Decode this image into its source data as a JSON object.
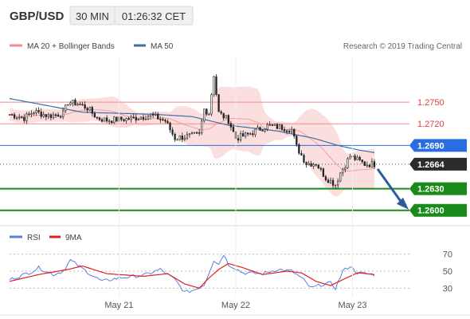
{
  "header": {
    "symbol": "GBP/USD",
    "timeframe": "30 MIN",
    "time": "01:26:32 CET"
  },
  "legend": {
    "items": [
      {
        "label": "MA 20 + Bollinger Bands",
        "color": "#f28b8b"
      },
      {
        "label": "MA 50",
        "color": "#3d6fa8"
      }
    ],
    "credit": "Research © 2019 Trading Central"
  },
  "rsi_legend": {
    "items": [
      {
        "label": "RSI",
        "color": "#5b7fe0"
      },
      {
        "label": "9MA",
        "color": "#e02020"
      }
    ]
  },
  "chart_data": [
    {
      "type": "candlestick",
      "ylim": [
        1.2582,
        1.2812
      ],
      "x_labels": [
        {
          "label": "May 21",
          "index": 45
        },
        {
          "label": "May 22",
          "index": 93
        },
        {
          "label": "May 23",
          "index": 141
        }
      ],
      "levels": [
        {
          "value": 1.275,
          "label": "1.2750",
          "style": "resistance",
          "color": "#f28b8b"
        },
        {
          "value": 1.272,
          "label": "1.2720",
          "style": "resistance",
          "color": "#f28b8b"
        },
        {
          "value": 1.269,
          "label": "1.2690",
          "style": "pivot",
          "color": "#2a6de0"
        },
        {
          "value": 1.2664,
          "label": "1.2664",
          "style": "last",
          "color": "#333333"
        },
        {
          "value": 1.263,
          "label": "1.2630",
          "style": "support",
          "color": "#1a8a1a"
        },
        {
          "value": 1.26,
          "label": "1.2600",
          "style": "support",
          "color": "#1a8a1a"
        }
      ],
      "waypoints": [
        [
          0,
          1.2733
        ],
        [
          6,
          1.2728
        ],
        [
          10,
          1.2737
        ],
        [
          16,
          1.2731
        ],
        [
          22,
          1.2734
        ],
        [
          24,
          1.275
        ],
        [
          28,
          1.2748
        ],
        [
          32,
          1.2742
        ],
        [
          36,
          1.2728
        ],
        [
          40,
          1.2725
        ],
        [
          50,
          1.2727
        ],
        [
          58,
          1.2732
        ],
        [
          64,
          1.2724
        ],
        [
          68,
          1.27
        ],
        [
          74,
          1.2703
        ],
        [
          78,
          1.2705
        ],
        [
          80,
          1.274
        ],
        [
          82,
          1.2735
        ],
        [
          84,
          1.2788
        ],
        [
          86,
          1.2735
        ],
        [
          90,
          1.2725
        ],
        [
          93,
          1.27
        ],
        [
          98,
          1.2705
        ],
        [
          103,
          1.2713
        ],
        [
          106,
          1.2717
        ],
        [
          112,
          1.2715
        ],
        [
          116,
          1.2712
        ],
        [
          118,
          1.2688
        ],
        [
          122,
          1.2665
        ],
        [
          126,
          1.2665
        ],
        [
          130,
          1.2645
        ],
        [
          134,
          1.2636
        ],
        [
          136,
          1.2652
        ],
        [
          140,
          1.2675
        ],
        [
          144,
          1.2668
        ],
        [
          146,
          1.2664
        ],
        [
          150,
          1.2664
        ]
      ],
      "ma50_waypoints": [
        [
          0,
          1.2755
        ],
        [
          30,
          1.2736
        ],
        [
          60,
          1.2733
        ],
        [
          75,
          1.273
        ],
        [
          90,
          1.2718
        ],
        [
          110,
          1.271
        ],
        [
          125,
          1.27
        ],
        [
          135,
          1.269
        ],
        [
          143,
          1.2684
        ],
        [
          150,
          1.268
        ]
      ],
      "forecast": {
        "from": 1.2664,
        "to": 1.26
      }
    },
    {
      "type": "line",
      "name": "RSI",
      "ylim": [
        20,
        80
      ],
      "yticks": [
        30,
        50,
        70
      ],
      "rsi_waypoints": [
        [
          0,
          40
        ],
        [
          8,
          48
        ],
        [
          12,
          54
        ],
        [
          18,
          46
        ],
        [
          22,
          50
        ],
        [
          25,
          63
        ],
        [
          28,
          57
        ],
        [
          34,
          45
        ],
        [
          38,
          38
        ],
        [
          45,
          42
        ],
        [
          55,
          45
        ],
        [
          62,
          52
        ],
        [
          68,
          40
        ],
        [
          72,
          25
        ],
        [
          76,
          28
        ],
        [
          80,
          34
        ],
        [
          84,
          63
        ],
        [
          86,
          58
        ],
        [
          88,
          70
        ],
        [
          90,
          58
        ],
        [
          96,
          48
        ],
        [
          104,
          47
        ],
        [
          110,
          52
        ],
        [
          116,
          50
        ],
        [
          120,
          42
        ],
        [
          124,
          30
        ],
        [
          128,
          34
        ],
        [
          132,
          36
        ],
        [
          134,
          30
        ],
        [
          137,
          50
        ],
        [
          140,
          56
        ],
        [
          143,
          48
        ],
        [
          150,
          46
        ]
      ],
      "ma9_waypoints": [
        [
          0,
          38
        ],
        [
          12,
          46
        ],
        [
          24,
          52
        ],
        [
          30,
          56
        ],
        [
          40,
          47
        ],
        [
          55,
          44
        ],
        [
          65,
          47
        ],
        [
          72,
          35
        ],
        [
          78,
          30
        ],
        [
          82,
          42
        ],
        [
          86,
          52
        ],
        [
          90,
          59
        ],
        [
          96,
          54
        ],
        [
          104,
          46
        ],
        [
          114,
          50
        ],
        [
          120,
          48
        ],
        [
          126,
          38
        ],
        [
          132,
          33
        ],
        [
          137,
          40
        ],
        [
          143,
          48
        ],
        [
          150,
          46
        ]
      ]
    }
  ]
}
